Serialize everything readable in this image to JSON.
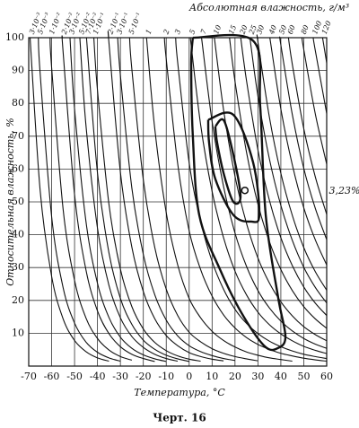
{
  "chart_data": {
    "type": "line",
    "title": "Абсолютная влажность, г/м³",
    "x_label": "Температура, °С",
    "y_label": "Относительная влажность, %",
    "annotation": "3,23%",
    "caption": "Черт. 16",
    "xlim": [
      -70,
      60
    ],
    "xticks": [
      -70,
      -60,
      -50,
      -40,
      -30,
      -20,
      -10,
      0,
      10,
      20,
      30,
      40,
      50,
      60
    ],
    "ylim": [
      0,
      100
    ],
    "yticks": [
      10,
      20,
      30,
      40,
      50,
      60,
      70,
      80,
      90,
      100
    ],
    "grid": true,
    "color": "#111111",
    "series": [
      {
        "name": "3·10⁻³",
        "x": [
          -69.4,
          -65,
          -60,
          -55,
          -50,
          -45,
          -40,
          -35
        ],
        "values": [
          100,
          53.4,
          27.3,
          14.4,
          7.8,
          4.4,
          2.5,
          1.5
        ]
      },
      {
        "name": "5·10⁻³",
        "x": [
          -65.8,
          -65,
          -60,
          -55,
          -50,
          -45,
          -40,
          -35,
          -30
        ],
        "values": [
          100,
          89.0,
          45.5,
          23.9,
          13.1,
          7.3,
          4.2,
          2.5,
          1.5
        ]
      },
      {
        "name": "1·10⁻²",
        "x": [
          -60.7,
          -60,
          -55,
          -50,
          -45,
          -40,
          -35,
          -30,
          -25
        ],
        "values": [
          100,
          90.9,
          47.8,
          26.1,
          14.6,
          8.4,
          4.9,
          2.9,
          1.8
        ]
      },
      {
        "name": "2·10⁻²",
        "x": [
          -55.3,
          -55,
          -50,
          -45,
          -40,
          -35,
          -30,
          -25,
          -20,
          -15
        ],
        "values": [
          100,
          95.7,
          52.2,
          29.2,
          16.8,
          9.9,
          5.9,
          3.6,
          2.3,
          1.4
        ]
      },
      {
        "name": "3·10⁻²",
        "x": [
          -52,
          -50,
          -45,
          -40,
          -35,
          -30,
          -25,
          -20,
          -15,
          -10
        ],
        "values": [
          100,
          78.3,
          43.9,
          25.2,
          14.8,
          8.8,
          5.4,
          3.4,
          2.2,
          1.4
        ]
      },
      {
        "name": "5·10⁻²",
        "x": [
          -47.7,
          -45,
          -40,
          -35,
          -30,
          -25,
          -20,
          -15,
          -10,
          -5
        ],
        "values": [
          100,
          73.1,
          42.0,
          24.6,
          14.7,
          9.0,
          5.7,
          3.6,
          2.3,
          1.5
        ]
      },
      {
        "name": "7·10⁻²",
        "x": [
          -44.8,
          -40,
          -35,
          -30,
          -25,
          -20,
          -15,
          -10,
          -5,
          0
        ],
        "values": [
          100,
          58.8,
          34.5,
          20.6,
          12.7,
          7.9,
          5.1,
          3.3,
          2.2,
          1.4
        ]
      },
      {
        "name": "1·10⁻¹",
        "x": [
          -41.6,
          -40,
          -35,
          -30,
          -25,
          -20,
          -15,
          -10,
          -5,
          0,
          5
        ],
        "values": [
          100,
          84.0,
          49.3,
          29.5,
          18.1,
          11.3,
          7.2,
          4.7,
          3.1,
          2.1,
          1.5
        ]
      },
      {
        "name": "2·10⁻¹",
        "x": [
          -35.1,
          -35,
          -30,
          -25,
          -20,
          -15,
          -10,
          -5,
          0,
          5,
          10,
          15
        ],
        "values": [
          100,
          98.5,
          59.0,
          36.2,
          22.7,
          14.4,
          9.3,
          6.2,
          4.1,
          2.9,
          2.1,
          1.6
        ]
      },
      {
        "name": "3·10⁻¹",
        "x": [
          -31.2,
          -30,
          -25,
          -20,
          -15,
          -10,
          -5,
          0,
          5,
          10,
          15,
          20
        ],
        "values": [
          100,
          88.5,
          54.2,
          34.0,
          21.7,
          14.0,
          9.2,
          6.2,
          4.4,
          3.2,
          2.3,
          1.7
        ]
      },
      {
        "name": "5·10⁻¹",
        "x": [
          -26,
          -25,
          -20,
          -15,
          -10,
          -5,
          0,
          5,
          10,
          15,
          20,
          25,
          30
        ],
        "values": [
          100,
          90.4,
          56.7,
          36.1,
          23.4,
          15.4,
          10.3,
          7.4,
          5.3,
          3.9,
          2.9,
          2.2,
          1.6
        ]
      },
      {
        "name": "1",
        "x": [
          -18.6,
          -15,
          -10,
          -5,
          0,
          5,
          10,
          15,
          20,
          25,
          30,
          35,
          40,
          45
        ],
        "values": [
          100,
          72.2,
          46.7,
          30.8,
          20.6,
          14.7,
          10.6,
          7.8,
          5.8,
          4.3,
          3.3,
          2.5,
          2.0,
          1.5
        ]
      },
      {
        "name": "2",
        "x": [
          -10.8,
          -10,
          -5,
          0,
          5,
          10,
          15,
          20,
          25,
          30,
          35,
          40,
          45,
          50,
          55,
          60
        ],
        "values": [
          100,
          93.5,
          61.6,
          41.2,
          29.4,
          21.3,
          15.6,
          11.6,
          8.7,
          6.6,
          5.1,
          3.9,
          3.1,
          2.4,
          1.9,
          1.5
        ]
      },
      {
        "name": "3",
        "x": [
          -5.9,
          -5,
          0,
          5,
          10,
          15,
          20,
          25,
          30,
          35,
          40,
          45,
          50,
          55,
          60
        ],
        "values": [
          100,
          92.4,
          61.9,
          44.1,
          31.9,
          23.4,
          17.3,
          13.0,
          9.9,
          7.6,
          5.9,
          4.6,
          3.6,
          2.9,
          2.3
        ]
      },
      {
        "name": "5",
        "x": [
          0.5,
          5,
          10,
          15,
          20,
          25,
          30,
          35,
          40,
          45,
          50,
          55,
          60
        ],
        "values": [
          100,
          73.5,
          53.2,
          39.1,
          28.9,
          21.7,
          16.4,
          12.6,
          9.8,
          7.7,
          6.0,
          4.8,
          3.8
        ]
      },
      {
        "name": "7",
        "x": [
          5.4,
          10,
          15,
          20,
          25,
          30,
          35,
          40,
          45,
          50,
          55,
          60
        ],
        "values": [
          100,
          74.5,
          54.7,
          40.5,
          30.4,
          23.0,
          17.7,
          13.7,
          10.7,
          8.4,
          6.7,
          5.4
        ]
      },
      {
        "name": "10",
        "x": [
          11,
          15,
          20,
          25,
          30,
          35,
          40,
          45,
          50,
          55,
          60
        ],
        "values": [
          100,
          78.1,
          57.8,
          43.5,
          32.9,
          25.3,
          19.6,
          15.3,
          12.0,
          9.6,
          7.7
        ]
      },
      {
        "name": "15",
        "x": [
          17.6,
          20,
          25,
          30,
          35,
          40,
          45,
          50,
          55,
          60
        ],
        "values": [
          100,
          86.7,
          65.2,
          49.3,
          37.9,
          29.4,
          23.0,
          18.1,
          14.4,
          11.5
        ]
      },
      {
        "name": "20",
        "x": [
          22.5,
          25,
          30,
          35,
          40,
          45,
          50,
          55,
          60
        ],
        "values": [
          100,
          87.0,
          65.8,
          50.5,
          39.1,
          30.6,
          24.1,
          19.2,
          15.4
        ]
      },
      {
        "name": "25",
        "x": [
          26.5,
          30,
          35,
          40,
          45,
          50,
          55,
          60
        ],
        "values": [
          100,
          82.2,
          63.1,
          48.9,
          38.3,
          30.1,
          24.0,
          19.2
        ]
      },
      {
        "name": "30",
        "x": [
          29.8,
          30,
          35,
          40,
          45,
          50,
          55,
          60
        ],
        "values": [
          100,
          98.7,
          75.8,
          58.7,
          45.9,
          36.1,
          28.8,
          23.1
        ]
      },
      {
        "name": "40",
        "x": [
          35.2,
          40,
          45,
          50,
          55,
          60
        ],
        "values": [
          100,
          78.3,
          61.3,
          48.2,
          38.5,
          30.8
        ]
      },
      {
        "name": "50",
        "x": [
          39.6,
          40,
          45,
          50,
          55,
          60
        ],
        "values": [
          100,
          97.8,
          76.6,
          60.2,
          48.1,
          38.5
        ]
      },
      {
        "name": "60",
        "x": [
          43.3,
          45,
          50,
          55,
          60
        ],
        "values": [
          100,
          91.9,
          72.3,
          57.7,
          46.2
        ]
      },
      {
        "name": "80",
        "x": [
          49.2,
          50,
          55,
          60
        ],
        "values": [
          100,
          96.4,
          76.9,
          61.5
        ]
      },
      {
        "name": "100",
        "x": [
          54.1,
          55,
          60
        ],
        "values": [
          100,
          96.2,
          76.9
        ]
      },
      {
        "name": "120",
        "x": [
          58.2,
          60
        ],
        "values": [
          100,
          92.3
        ]
      }
    ],
    "contours": [
      {
        "x": [
          1.6,
          28,
          31,
          33.4,
          38.8,
          42,
          38.8,
          33,
          23,
          13.4,
          4.4,
          1.6,
          0.9,
          1.6
        ],
        "values": [
          100,
          99,
          79,
          46,
          21,
          9,
          5.5,
          6,
          16,
          29.5,
          46,
          70,
          92,
          100
        ]
      },
      {
        "x": [
          8.3,
          19.3,
          27.9,
          30.6,
          27,
          19.3,
          11.4,
          8.7,
          8.3
        ],
        "values": [
          75,
          76.5,
          62,
          46,
          44,
          46,
          57,
          68,
          75
        ]
      },
      {
        "x": [
          11.4,
          15.3,
          20,
          22.4,
          19.3,
          15.3,
          12.2,
          11.4
        ],
        "values": [
          73,
          74.6,
          62,
          51.4,
          50,
          58,
          68,
          73
        ]
      }
    ],
    "point": {
      "x": 24.3,
      "value": 53.5
    }
  }
}
